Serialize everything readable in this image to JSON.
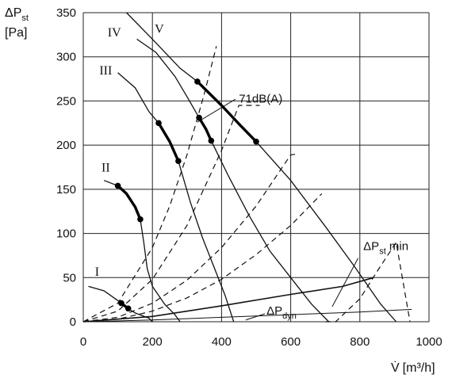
{
  "chart_data": {
    "type": "line",
    "title": "",
    "xlabel": {
      "base": "V̇",
      "unit": "[m³/h]"
    },
    "ylabel": {
      "base": "ΔP",
      "sub": "st",
      "unit": "[Pa]"
    },
    "xlim": [
      0,
      1000
    ],
    "ylim": [
      0,
      350
    ],
    "xticks": [
      0,
      200,
      400,
      600,
      800,
      1000
    ],
    "yticks": [
      0,
      50,
      100,
      150,
      200,
      250,
      300,
      350
    ],
    "grid": true,
    "fan_curves": [
      {
        "name": "I",
        "points": [
          [
            15,
            40
          ],
          [
            60,
            35
          ],
          [
            100,
            24
          ],
          [
            125,
            16
          ],
          [
            150,
            10
          ],
          [
            190,
            4
          ],
          [
            200,
            0
          ]
        ]
      },
      {
        "name": "II",
        "points": [
          [
            60,
            160
          ],
          [
            100,
            154
          ],
          [
            125,
            145
          ],
          [
            150,
            130
          ],
          [
            165,
            116
          ],
          [
            175,
            90
          ],
          [
            185,
            60
          ],
          [
            200,
            40
          ],
          [
            235,
            20
          ],
          [
            265,
            8
          ],
          [
            280,
            0
          ]
        ]
      },
      {
        "name": "III",
        "points": [
          [
            100,
            282
          ],
          [
            150,
            265
          ],
          [
            190,
            238
          ],
          [
            218,
            225
          ],
          [
            250,
            204
          ],
          [
            275,
            182
          ],
          [
            310,
            135
          ],
          [
            345,
            95
          ],
          [
            380,
            60
          ],
          [
            410,
            30
          ],
          [
            435,
            0
          ]
        ]
      },
      {
        "name": "IV",
        "points": [
          [
            155,
            320
          ],
          [
            210,
            305
          ],
          [
            265,
            278
          ],
          [
            300,
            255
          ],
          [
            335,
            231
          ],
          [
            370,
            205
          ],
          [
            420,
            165
          ],
          [
            480,
            120
          ],
          [
            540,
            80
          ],
          [
            600,
            50
          ],
          [
            660,
            20
          ],
          [
            710,
            0
          ]
        ]
      },
      {
        "name": "V",
        "points": [
          [
            125,
            350
          ],
          [
            200,
            320
          ],
          [
            280,
            287
          ],
          [
            330,
            272
          ],
          [
            400,
            245
          ],
          [
            500,
            204
          ],
          [
            600,
            160
          ],
          [
            700,
            108
          ],
          [
            780,
            65
          ],
          [
            860,
            20
          ],
          [
            905,
            0
          ]
        ]
      }
    ],
    "fan_labels": [
      {
        "text": "I",
        "x": 40,
        "y": 52
      },
      {
        "text": "II",
        "x": 65,
        "y": 170
      },
      {
        "text": "III",
        "x": 65,
        "y": 280
      },
      {
        "text": "IV",
        "x": 90,
        "y": 323
      },
      {
        "text": "V",
        "x": 220,
        "y": 327
      }
    ],
    "operating_segments": [
      {
        "curve": "II",
        "points": [
          [
            100,
            154
          ],
          [
            125,
            145
          ],
          [
            150,
            130
          ],
          [
            165,
            116
          ]
        ]
      },
      {
        "curve": "III",
        "points": [
          [
            218,
            225
          ],
          [
            250,
            204
          ],
          [
            275,
            182
          ]
        ]
      },
      {
        "curve": "IV",
        "points": [
          [
            335,
            231
          ],
          [
            355,
            218
          ],
          [
            370,
            205
          ]
        ]
      },
      {
        "curve": "V",
        "points": [
          [
            330,
            272
          ],
          [
            400,
            245
          ],
          [
            455,
            222
          ],
          [
            500,
            204
          ]
        ]
      },
      {
        "curve": "I",
        "points": [
          [
            110,
            21
          ],
          [
            130,
            15
          ]
        ]
      }
    ],
    "operating_points": [
      [
        100,
        154
      ],
      [
        165,
        116
      ],
      [
        218,
        225
      ],
      [
        275,
        182
      ],
      [
        335,
        231
      ],
      [
        370,
        205
      ],
      [
        330,
        272
      ],
      [
        500,
        204
      ],
      [
        110,
        21
      ],
      [
        130,
        15
      ]
    ],
    "system_curves": [
      {
        "points": [
          [
            0,
            0
          ],
          [
            100,
            21
          ],
          [
            200,
            84
          ],
          [
            250,
            131
          ],
          [
            300,
            189
          ],
          [
            350,
            258
          ],
          [
            385,
            312
          ]
        ]
      },
      {
        "points": [
          [
            0,
            0
          ],
          [
            100,
            12
          ],
          [
            200,
            48
          ],
          [
            300,
            109
          ],
          [
            400,
            194
          ],
          [
            450,
            245
          ],
          [
            510,
            245
          ]
        ]
      },
      {
        "points": [
          [
            0,
            0
          ],
          [
            100,
            5
          ],
          [
            200,
            21
          ],
          [
            300,
            47
          ],
          [
            400,
            84
          ],
          [
            500,
            131
          ],
          [
            600,
            189
          ],
          [
            620,
            190
          ]
        ]
      },
      {
        "points": [
          [
            0,
            0
          ],
          [
            100,
            3
          ],
          [
            200,
            12
          ],
          [
            300,
            27
          ],
          [
            400,
            48
          ],
          [
            500,
            76
          ],
          [
            600,
            109
          ],
          [
            690,
            145
          ]
        ]
      },
      {
        "points": [
          [
            700,
            0
          ],
          [
            730,
            0
          ],
          [
            800,
            26
          ],
          [
            850,
            57
          ],
          [
            905,
            90
          ],
          [
            945,
            0
          ]
        ]
      }
    ],
    "min_curve": {
      "label": {
        "base": "ΔP",
        "sub": "st",
        "tail": " min"
      },
      "points": [
        [
          0,
          0
        ],
        [
          200,
          6
        ],
        [
          400,
          18
        ],
        [
          600,
          31
        ],
        [
          750,
          40
        ],
        [
          840,
          50
        ]
      ],
      "label_at": [
        810,
        81
      ]
    },
    "dyn_curve": {
      "label": {
        "base": "ΔP",
        "sub": "dyn"
      },
      "points": [
        [
          0,
          0
        ],
        [
          200,
          2
        ],
        [
          400,
          5
        ],
        [
          600,
          8
        ],
        [
          800,
          11
        ],
        [
          950,
          14
        ]
      ],
      "label_at": [
        530,
        8
      ]
    },
    "annotations": [
      {
        "text": "71dB(A)",
        "x": 450,
        "y": 248
      }
    ],
    "legend": "none"
  }
}
